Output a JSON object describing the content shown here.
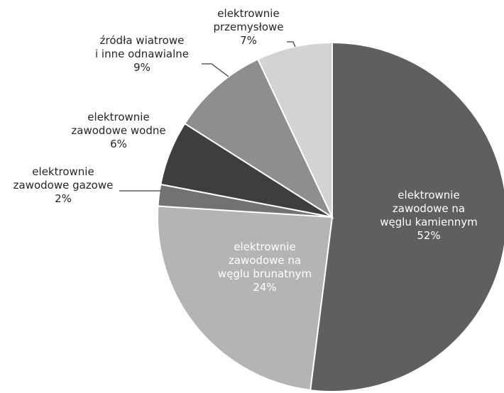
{
  "chart_data": {
    "type": "pie",
    "title": "",
    "slices": [
      {
        "label_lines": [
          "elektrownie",
          "zawodowe na",
          "węglu kamiennym"
        ],
        "value": 52,
        "value_text": "52%",
        "color": "#5f5f5f",
        "label_color": "#ffffff"
      },
      {
        "label_lines": [
          "elektrownie",
          "zawodowe na",
          "węglu brunatnym"
        ],
        "value": 24,
        "value_text": "24%",
        "color": "#b4b4b4",
        "label_color": "#ffffff"
      },
      {
        "label_lines": [
          "elektrownie",
          "zawodowe gazowe"
        ],
        "value": 2,
        "value_text": "2%",
        "color": "#727272",
        "label_color": "#262626"
      },
      {
        "label_lines": [
          "elektrownie",
          "zawodowe wodne"
        ],
        "value": 6,
        "value_text": "6%",
        "color": "#3e3e3e",
        "label_color": "#262626"
      },
      {
        "label_lines": [
          "źródła wiatrowe",
          "i inne odnawialne"
        ],
        "value": 9,
        "value_text": "9%",
        "color": "#8e8e8e",
        "label_color": "#262626"
      },
      {
        "label_lines": [
          "elektrownie",
          "przemysłowe"
        ],
        "value": 7,
        "value_text": "7%",
        "color": "#d3d3d3",
        "label_color": "#262626"
      }
    ]
  }
}
